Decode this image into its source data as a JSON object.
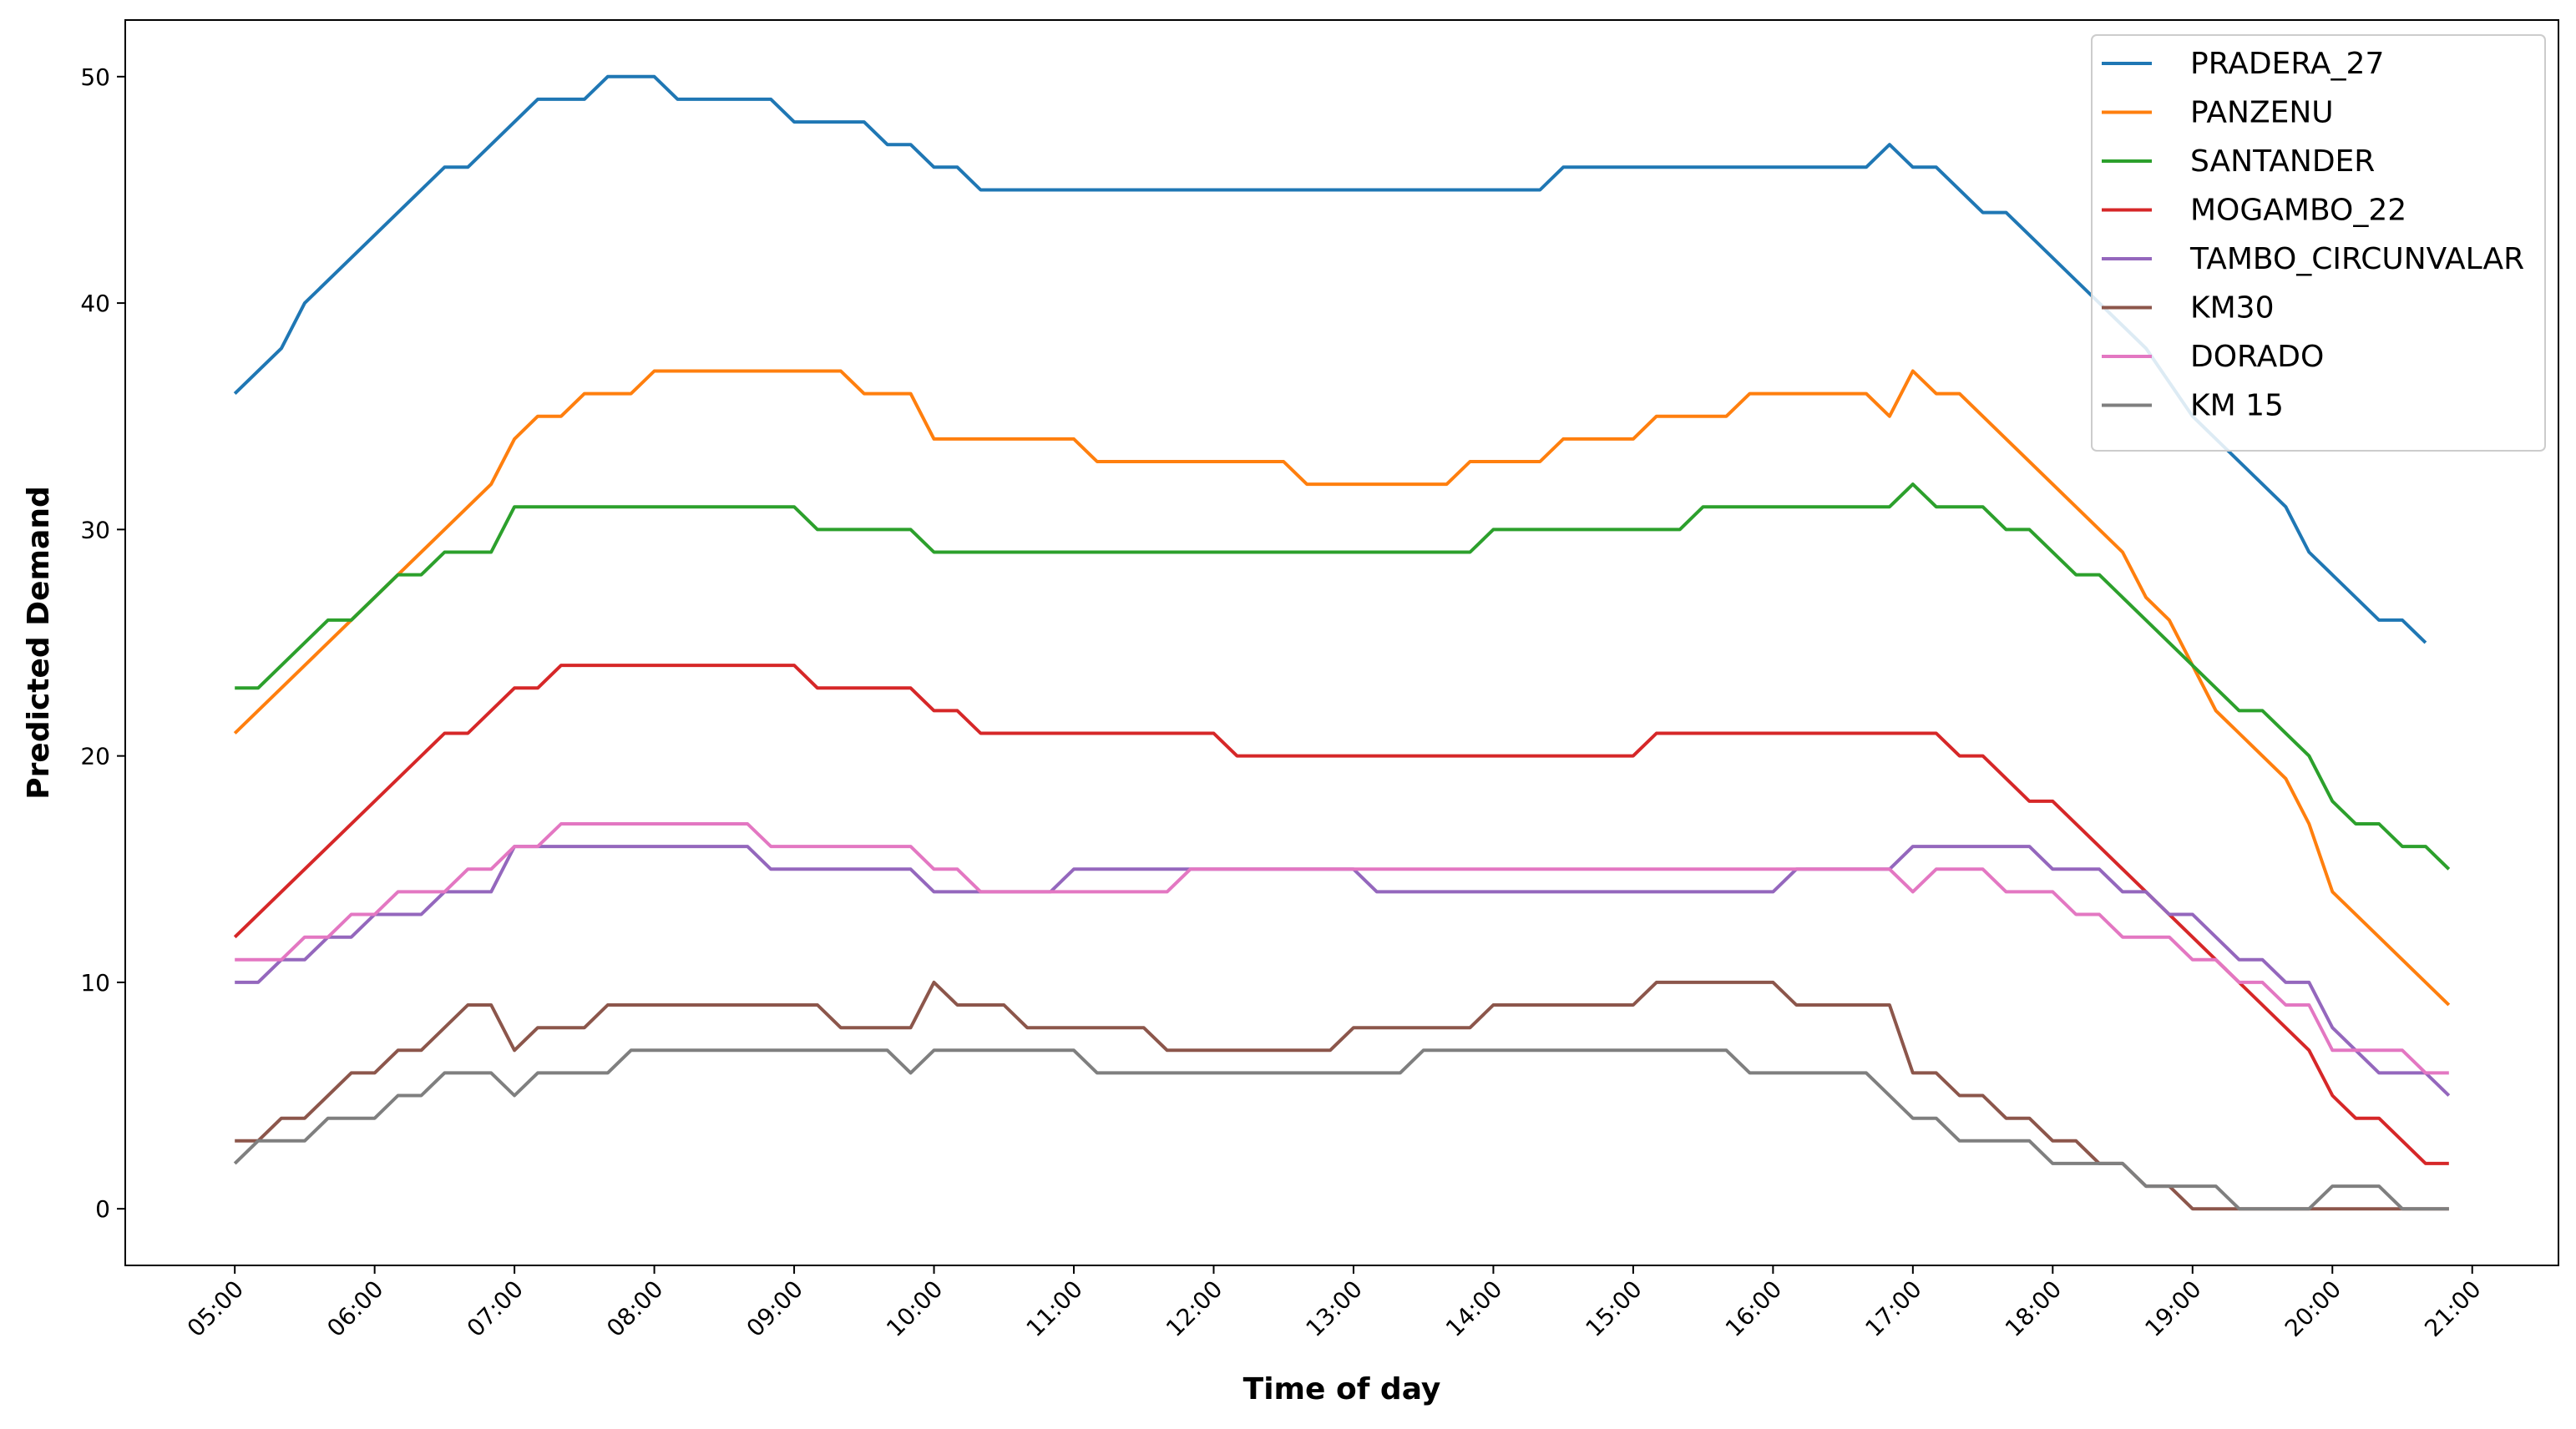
{
  "chart_data": {
    "type": "line",
    "xlabel": "Time of day",
    "ylabel": "Predicted Demand",
    "x_ticks": [
      "05:00",
      "06:00",
      "07:00",
      "08:00",
      "09:00",
      "10:00",
      "11:00",
      "12:00",
      "13:00",
      "14:00",
      "15:00",
      "16:00",
      "17:00",
      "18:00",
      "19:00",
      "20:00",
      "21:00"
    ],
    "y_ticks": [
      0,
      10,
      20,
      30,
      40,
      50
    ],
    "xlim": [
      "04:13",
      "21:37"
    ],
    "ylim": [
      -2.5,
      52.5
    ],
    "grid": false,
    "legend_position": "top-right",
    "series": [
      {
        "name": "PRADERA_27",
        "color": "#1f77b4",
        "points": [
          [
            "05:00",
            36
          ],
          [
            "05:20",
            38
          ],
          [
            "05:30",
            40
          ],
          [
            "06:30",
            46
          ],
          [
            "06:40",
            46
          ],
          [
            "07:10",
            49
          ],
          [
            "07:30",
            49
          ],
          [
            "07:40",
            50
          ],
          [
            "08:00",
            50
          ],
          [
            "08:10",
            49
          ],
          [
            "08:50",
            49
          ],
          [
            "09:00",
            48
          ],
          [
            "09:30",
            48
          ],
          [
            "09:40",
            47
          ],
          [
            "09:50",
            47
          ],
          [
            "10:00",
            46
          ],
          [
            "10:10",
            46
          ],
          [
            "10:20",
            45
          ],
          [
            "14:20",
            45
          ],
          [
            "14:30",
            46
          ],
          [
            "16:40",
            46
          ],
          [
            "16:50",
            47
          ],
          [
            "17:00",
            46
          ],
          [
            "17:10",
            46
          ],
          [
            "17:30",
            44
          ],
          [
            "17:40",
            44
          ],
          [
            "18:10",
            41
          ],
          [
            "18:40",
            38
          ],
          [
            "19:00",
            35
          ],
          [
            "19:40",
            31
          ],
          [
            "19:50",
            29
          ],
          [
            "20:20",
            26
          ],
          [
            "20:30",
            26
          ],
          [
            "20:40",
            25
          ]
        ]
      },
      {
        "name": "PANZENU",
        "color": "#ff7f0e",
        "points": [
          [
            "05:00",
            21
          ],
          [
            "06:50",
            32
          ],
          [
            "07:00",
            34
          ],
          [
            "07:10",
            35
          ],
          [
            "07:20",
            35
          ],
          [
            "07:30",
            36
          ],
          [
            "07:50",
            36
          ],
          [
            "08:00",
            37
          ],
          [
            "09:20",
            37
          ],
          [
            "09:30",
            36
          ],
          [
            "09:50",
            36
          ],
          [
            "10:00",
            34
          ],
          [
            "11:00",
            34
          ],
          [
            "11:10",
            33
          ],
          [
            "12:30",
            33
          ],
          [
            "12:40",
            32
          ],
          [
            "13:40",
            32
          ],
          [
            "13:50",
            33
          ],
          [
            "14:20",
            33
          ],
          [
            "14:30",
            34
          ],
          [
            "14:50",
            34
          ],
          [
            "15:00",
            34
          ],
          [
            "15:10",
            35
          ],
          [
            "15:40",
            35
          ],
          [
            "15:50",
            36
          ],
          [
            "16:40",
            36
          ],
          [
            "16:50",
            35
          ],
          [
            "17:00",
            37
          ],
          [
            "17:10",
            36
          ],
          [
            "17:20",
            36
          ],
          [
            "18:30",
            29
          ],
          [
            "18:40",
            27
          ],
          [
            "18:50",
            26
          ],
          [
            "19:10",
            22
          ],
          [
            "19:20",
            21
          ],
          [
            "19:40",
            19
          ],
          [
            "19:50",
            17
          ],
          [
            "20:00",
            14
          ],
          [
            "20:50",
            9
          ]
        ]
      },
      {
        "name": "SANTANDER",
        "color": "#2ca02c",
        "points": [
          [
            "05:00",
            23
          ],
          [
            "05:10",
            23
          ],
          [
            "05:40",
            26
          ],
          [
            "05:50",
            26
          ],
          [
            "06:10",
            28
          ],
          [
            "06:20",
            28
          ],
          [
            "06:30",
            29
          ],
          [
            "06:50",
            29
          ],
          [
            "07:00",
            31
          ],
          [
            "09:00",
            31
          ],
          [
            "09:10",
            30
          ],
          [
            "09:50",
            30
          ],
          [
            "10:00",
            29
          ],
          [
            "13:50",
            29
          ],
          [
            "14:00",
            30
          ],
          [
            "15:20",
            30
          ],
          [
            "15:30",
            31
          ],
          [
            "16:50",
            31
          ],
          [
            "17:00",
            32
          ],
          [
            "17:10",
            31
          ],
          [
            "17:30",
            31
          ],
          [
            "17:40",
            30
          ],
          [
            "17:50",
            30
          ],
          [
            "18:10",
            28
          ],
          [
            "18:20",
            28
          ],
          [
            "19:10",
            23
          ],
          [
            "19:20",
            22
          ],
          [
            "19:30",
            22
          ],
          [
            "19:50",
            20
          ],
          [
            "20:00",
            18
          ],
          [
            "20:10",
            17
          ],
          [
            "20:20",
            17
          ],
          [
            "20:30",
            16
          ],
          [
            "20:40",
            16
          ],
          [
            "20:50",
            15
          ]
        ]
      },
      {
        "name": "MOGAMBO_22",
        "color": "#d62728",
        "points": [
          [
            "05:00",
            12
          ],
          [
            "06:30",
            21
          ],
          [
            "06:40",
            21
          ],
          [
            "07:00",
            23
          ],
          [
            "07:10",
            23
          ],
          [
            "07:20",
            24
          ],
          [
            "09:00",
            24
          ],
          [
            "09:10",
            23
          ],
          [
            "09:50",
            23
          ],
          [
            "10:00",
            22
          ],
          [
            "10:10",
            22
          ],
          [
            "10:20",
            21
          ],
          [
            "11:50",
            21
          ],
          [
            "12:00",
            21
          ],
          [
            "12:10",
            20
          ],
          [
            "15:00",
            20
          ],
          [
            "15:10",
            21
          ],
          [
            "17:10",
            21
          ],
          [
            "17:20",
            20
          ],
          [
            "17:30",
            20
          ],
          [
            "17:50",
            18
          ],
          [
            "18:00",
            18
          ],
          [
            "19:50",
            7
          ],
          [
            "20:00",
            5
          ],
          [
            "20:10",
            4
          ],
          [
            "20:20",
            4
          ],
          [
            "20:40",
            2
          ],
          [
            "20:50",
            2
          ]
        ]
      },
      {
        "name": "TAMBO_CIRCUNVALAR",
        "color": "#9467bd",
        "points": [
          [
            "05:00",
            10
          ],
          [
            "05:10",
            10
          ],
          [
            "05:20",
            11
          ],
          [
            "05:30",
            11
          ],
          [
            "05:40",
            12
          ],
          [
            "05:50",
            12
          ],
          [
            "06:00",
            13
          ],
          [
            "06:20",
            13
          ],
          [
            "06:30",
            14
          ],
          [
            "06:50",
            14
          ],
          [
            "07:00",
            16
          ],
          [
            "08:40",
            16
          ],
          [
            "08:50",
            15
          ],
          [
            "09:50",
            15
          ],
          [
            "10:00",
            14
          ],
          [
            "10:50",
            14
          ],
          [
            "11:00",
            15
          ],
          [
            "13:00",
            15
          ],
          [
            "13:10",
            14
          ],
          [
            "15:50",
            14
          ],
          [
            "16:00",
            14
          ],
          [
            "16:10",
            15
          ],
          [
            "16:50",
            15
          ],
          [
            "17:00",
            16
          ],
          [
            "17:50",
            16
          ],
          [
            "18:00",
            15
          ],
          [
            "18:20",
            15
          ],
          [
            "18:30",
            14
          ],
          [
            "18:40",
            14
          ],
          [
            "18:50",
            13
          ],
          [
            "19:00",
            13
          ],
          [
            "19:20",
            11
          ],
          [
            "19:30",
            11
          ],
          [
            "19:40",
            10
          ],
          [
            "19:50",
            10
          ],
          [
            "20:00",
            8
          ],
          [
            "20:10",
            7
          ],
          [
            "20:20",
            6
          ],
          [
            "20:40",
            6
          ],
          [
            "20:50",
            5
          ]
        ]
      },
      {
        "name": "KM30",
        "color": "#8c564b",
        "points": [
          [
            "05:00",
            3
          ],
          [
            "05:10",
            3
          ],
          [
            "05:20",
            4
          ],
          [
            "05:30",
            4
          ],
          [
            "05:50",
            6
          ],
          [
            "06:00",
            6
          ],
          [
            "06:10",
            7
          ],
          [
            "06:20",
            7
          ],
          [
            "06:40",
            9
          ],
          [
            "06:50",
            9
          ],
          [
            "07:00",
            7
          ],
          [
            "07:10",
            8
          ],
          [
            "07:30",
            8
          ],
          [
            "07:40",
            9
          ],
          [
            "09:10",
            9
          ],
          [
            "09:20",
            8
          ],
          [
            "09:50",
            8
          ],
          [
            "10:00",
            10
          ],
          [
            "10:10",
            9
          ],
          [
            "10:30",
            9
          ],
          [
            "10:40",
            8
          ],
          [
            "11:30",
            8
          ],
          [
            "11:40",
            7
          ],
          [
            "12:50",
            7
          ],
          [
            "13:00",
            8
          ],
          [
            "13:50",
            8
          ],
          [
            "14:00",
            9
          ],
          [
            "15:00",
            9
          ],
          [
            "15:10",
            10
          ],
          [
            "16:00",
            10
          ],
          [
            "16:10",
            9
          ],
          [
            "16:50",
            9
          ],
          [
            "17:00",
            6
          ],
          [
            "17:10",
            6
          ],
          [
            "17:20",
            5
          ],
          [
            "17:30",
            5
          ],
          [
            "17:40",
            4
          ],
          [
            "17:50",
            4
          ],
          [
            "18:00",
            3
          ],
          [
            "18:10",
            3
          ],
          [
            "18:20",
            2
          ],
          [
            "18:30",
            2
          ],
          [
            "18:40",
            1
          ],
          [
            "18:50",
            1
          ],
          [
            "19:00",
            0
          ],
          [
            "20:50",
            0
          ]
        ]
      },
      {
        "name": "DORADO",
        "color": "#e377c2",
        "points": [
          [
            "05:00",
            11
          ],
          [
            "05:20",
            11
          ],
          [
            "05:30",
            12
          ],
          [
            "05:40",
            12
          ],
          [
            "05:50",
            13
          ],
          [
            "06:00",
            13
          ],
          [
            "06:10",
            14
          ],
          [
            "06:30",
            14
          ],
          [
            "06:40",
            15
          ],
          [
            "06:50",
            15
          ],
          [
            "07:00",
            16
          ],
          [
            "07:10",
            16
          ],
          [
            "07:20",
            17
          ],
          [
            "08:40",
            17
          ],
          [
            "08:50",
            16
          ],
          [
            "09:50",
            16
          ],
          [
            "10:00",
            15
          ],
          [
            "10:10",
            15
          ],
          [
            "10:20",
            14
          ],
          [
            "11:40",
            14
          ],
          [
            "11:50",
            15
          ],
          [
            "16:50",
            15
          ],
          [
            "17:00",
            14
          ],
          [
            "17:10",
            15
          ],
          [
            "17:30",
            15
          ],
          [
            "17:40",
            14
          ],
          [
            "18:00",
            14
          ],
          [
            "18:10",
            13
          ],
          [
            "18:20",
            13
          ],
          [
            "18:30",
            12
          ],
          [
            "18:50",
            12
          ],
          [
            "19:00",
            11
          ],
          [
            "19:10",
            11
          ],
          [
            "19:20",
            10
          ],
          [
            "19:30",
            10
          ],
          [
            "19:40",
            9
          ],
          [
            "19:50",
            9
          ],
          [
            "20:00",
            7
          ],
          [
            "20:30",
            7
          ],
          [
            "20:40",
            6
          ],
          [
            "20:50",
            6
          ]
        ]
      },
      {
        "name": "KM 15",
        "color": "#7f7f7f",
        "points": [
          [
            "05:00",
            2
          ],
          [
            "05:10",
            3
          ],
          [
            "05:30",
            3
          ],
          [
            "05:40",
            4
          ],
          [
            "06:00",
            4
          ],
          [
            "06:10",
            5
          ],
          [
            "06:20",
            5
          ],
          [
            "06:30",
            6
          ],
          [
            "06:50",
            6
          ],
          [
            "07:00",
            5
          ],
          [
            "07:10",
            6
          ],
          [
            "07:40",
            6
          ],
          [
            "07:50",
            7
          ],
          [
            "09:40",
            7
          ],
          [
            "09:50",
            6
          ],
          [
            "10:00",
            7
          ],
          [
            "11:00",
            7
          ],
          [
            "11:10",
            6
          ],
          [
            "13:20",
            6
          ],
          [
            "13:30",
            7
          ],
          [
            "15:40",
            7
          ],
          [
            "15:50",
            6
          ],
          [
            "16:40",
            6
          ],
          [
            "17:00",
            4
          ],
          [
            "17:10",
            4
          ],
          [
            "17:20",
            3
          ],
          [
            "17:50",
            3
          ],
          [
            "18:00",
            2
          ],
          [
            "18:30",
            2
          ],
          [
            "18:40",
            1
          ],
          [
            "19:10",
            1
          ],
          [
            "19:20",
            0
          ],
          [
            "19:50",
            0
          ],
          [
            "20:00",
            1
          ],
          [
            "20:20",
            1
          ],
          [
            "20:30",
            0
          ],
          [
            "20:50",
            0
          ]
        ]
      }
    ]
  }
}
